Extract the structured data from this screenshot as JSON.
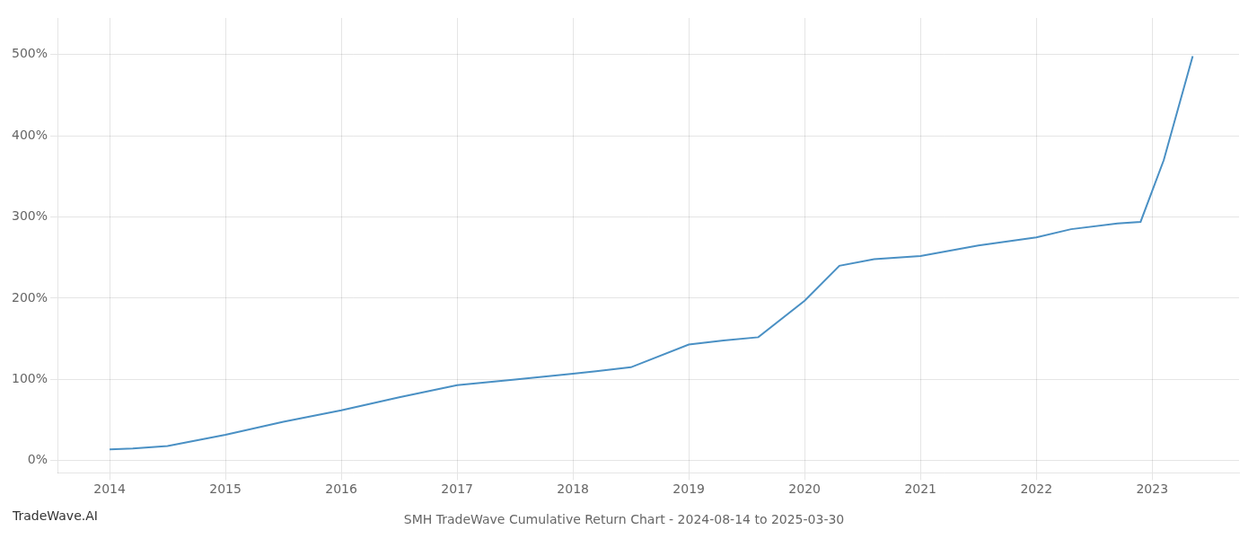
{
  "chart_data": {
    "type": "line",
    "title": "SMH TradeWave Cumulative Return Chart - 2024-08-14 to 2025-03-30",
    "annotations": [
      "TradeWave.AI"
    ],
    "x": [
      2014.0,
      2014.2,
      2014.5,
      2015.0,
      2015.5,
      2016.0,
      2016.5,
      2017.0,
      2017.5,
      2018.0,
      2018.2,
      2018.5,
      2019.0,
      2019.3,
      2019.6,
      2020.0,
      2020.3,
      2020.6,
      2021.0,
      2021.5,
      2022.0,
      2022.3,
      2022.7,
      2022.9,
      2023.1,
      2023.35
    ],
    "values": [
      14,
      15,
      18,
      32,
      48,
      62,
      78,
      93,
      100,
      107,
      110,
      115,
      143,
      148,
      152,
      197,
      240,
      248,
      252,
      265,
      275,
      285,
      292,
      294,
      370,
      498
    ],
    "color": "#4a90c4",
    "xlim": [
      2013.55,
      2023.75
    ],
    "xticks": [
      2014,
      2015,
      2016,
      2017,
      2018,
      2019,
      2020,
      2021,
      2022,
      2023
    ],
    "ylim": [
      -15,
      545
    ],
    "yticks": [
      {
        "value": 0,
        "label": "0%"
      },
      {
        "value": 100,
        "label": "100%"
      },
      {
        "value": 200,
        "label": "200%"
      },
      {
        "value": 300,
        "label": "300%"
      },
      {
        "value": 400,
        "label": "400%"
      },
      {
        "value": 500,
        "label": "500%"
      }
    ],
    "grid": true
  }
}
